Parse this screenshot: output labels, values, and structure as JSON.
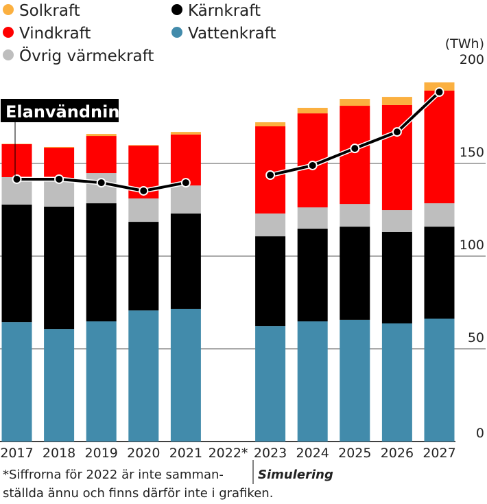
{
  "chart_data": {
    "type": "bar",
    "stacked": true,
    "unit": "(TWh)",
    "ylim": [
      0,
      200
    ],
    "yticks": [
      0,
      50,
      100,
      150,
      200
    ],
    "grid": true,
    "legend_placement": "top-left",
    "categories": [
      "2017",
      "2018",
      "2019",
      "2020",
      "2021",
      "2022*",
      "2023",
      "2024",
      "2025",
      "2026",
      "2027"
    ],
    "series": [
      {
        "name": "Vattenkraft",
        "color": "#428bab",
        "values": [
          64.4,
          60.7,
          64.8,
          70.7,
          71.5,
          null,
          62.2,
          64.8,
          65.6,
          63.7,
          66.3
        ]
      },
      {
        "name": "Kärnkraft",
        "color": "#000000",
        "values": [
          63.4,
          66.0,
          63.7,
          47.8,
          51.5,
          null,
          48.5,
          50.0,
          50.3,
          49.3,
          49.6
        ]
      },
      {
        "name": "Övrig värmekraft",
        "color": "#bebebe",
        "values": [
          14.8,
          14.8,
          16.3,
          12.6,
          15.1,
          null,
          12.3,
          11.5,
          12.2,
          11.8,
          12.6
        ]
      },
      {
        "name": "Vindkraft",
        "color": "#ff0000",
        "values": [
          17.8,
          17.0,
          20.0,
          28.5,
          27.5,
          null,
          47.0,
          50.7,
          53.0,
          56.7,
          60.8
        ]
      },
      {
        "name": "Solkraft",
        "color": "#fbb040",
        "values": [
          0.2,
          0.4,
          1.1,
          0.3,
          1.4,
          null,
          2.2,
          3.0,
          3.7,
          4.4,
          4.4
        ]
      }
    ],
    "line": {
      "name": "Elanvändning",
      "color": "#000000",
      "values": [
        141.5,
        141.5,
        139.6,
        135.2,
        139.6,
        null,
        143.7,
        148.9,
        158.1,
        167.0,
        188.5
      ]
    },
    "legend": [
      {
        "name": "Solkraft",
        "color": "#fbb040"
      },
      {
        "name": "Kärnkraft",
        "color": "#000000"
      },
      {
        "name": "Vindkraft",
        "color": "#ff0000"
      },
      {
        "name": "Vattenkraft",
        "color": "#428bab"
      },
      {
        "name": "Övrig värmekraft",
        "color": "#bebebe"
      }
    ],
    "annotations": {
      "line_label": "Elanvändning",
      "footnote_1": "*Siffrorna för 2022 är inte samman-",
      "footnote_2": "ställda ännu och finns därför inte i grafiken.",
      "simulation": "Simulering"
    }
  }
}
